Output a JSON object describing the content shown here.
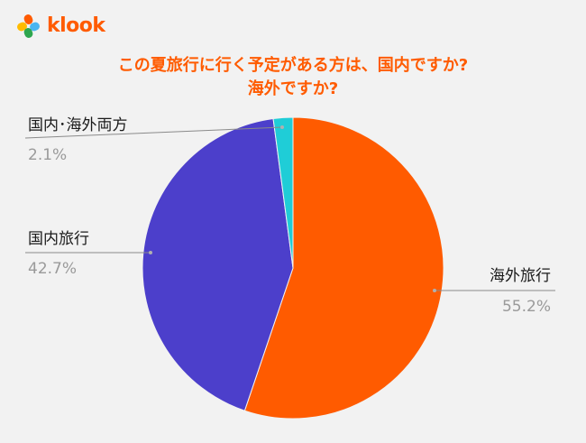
{
  "brand": {
    "name": "klook",
    "logo_colors": [
      "#ff5b00",
      "#ffbb00",
      "#4ab5f0",
      "#2ea64f"
    ]
  },
  "chart_data": {
    "type": "pie",
    "title_lines": [
      "この夏旅行に行く予定がある方は、国内ですか?",
      "海外ですか?"
    ],
    "slices": [
      {
        "name": "海外旅行",
        "value": 55.2,
        "label": "55.2%",
        "color": "#ff5b00"
      },
      {
        "name": "国内旅行",
        "value": 42.7,
        "label": "42.7%",
        "color": "#4c3fcb"
      },
      {
        "name": "国内･海外両方",
        "value": 2.1,
        "label": "2.1%",
        "color": "#1fcdd7"
      }
    ],
    "start": "12 o'clock",
    "direction": "clockwise",
    "legend": "none",
    "labels": "outside with leader lines"
  }
}
